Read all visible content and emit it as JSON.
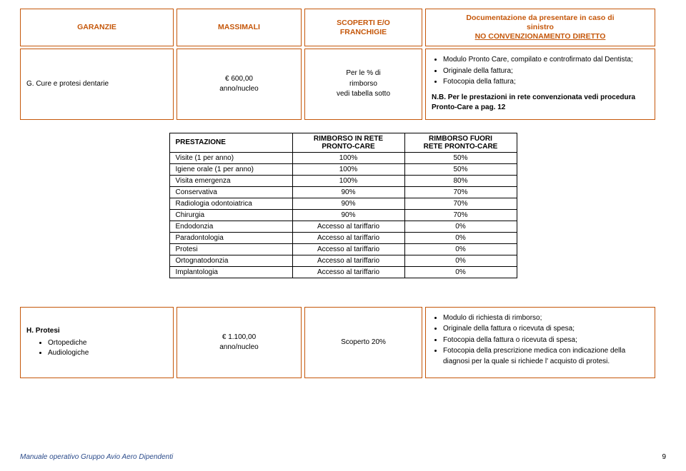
{
  "header": {
    "col1": "GARANZIE",
    "col2": "MASSIMALI",
    "col3_line1": "SCOPERTI E/O",
    "col3_line2": "FRANCHIGIE",
    "col4_line1": "Documentazione da presentare in caso di",
    "col4_line2": "sinistro",
    "col4_line3": "NO CONVENZIONAMENTO DIRETTO"
  },
  "rowG": {
    "c1": "G.   Cure e protesi dentarie",
    "c2_line1": "€   600,00",
    "c2_line2": "anno/nucleo",
    "c3_line1": "Per le % di",
    "c3_line2": "rimborso",
    "c3_line3": "vedi tabella sotto",
    "c4_bullets": [
      "Modulo Pronto  Care, compilato e controfirmato dal Dentista;",
      "Originale della fattura;",
      "Fotocopia della fattura;"
    ],
    "c4_note": "N.B. Per le prestazioni in rete convenzionata vedi procedura Pronto-Care a pag. 12"
  },
  "innerTable": {
    "headers": {
      "a": "PRESTAZIONE",
      "b1": "RIMBORSO IN RETE",
      "b2": "PRONTO-CARE",
      "c1": "RIMBORSO FUORI",
      "c2": "RETE PRONTO-CARE"
    },
    "rows": [
      {
        "a": "Visite (1 per anno)",
        "b": "100%",
        "c": "50%"
      },
      {
        "a": "Igiene orale (1 per anno)",
        "b": "100%",
        "c": "50%"
      },
      {
        "a": "Visita emergenza",
        "b": "100%",
        "c": "80%"
      },
      {
        "a": "Conservativa",
        "b": "90%",
        "c": "70%"
      },
      {
        "a": "Radiologia odontoiatrica",
        "b": "90%",
        "c": "70%"
      },
      {
        "a": "Chirurgia",
        "b": "90%",
        "c": "70%"
      },
      {
        "a": "Endodonzia",
        "b": "Accesso al tariffario",
        "c": "0%"
      },
      {
        "a": "Paradontologia",
        "b": "Accesso al tariffario",
        "c": "0%"
      },
      {
        "a": "Protesi",
        "b": "Accesso al tariffario",
        "c": "0%"
      },
      {
        "a": "Ortognatodonzia",
        "b": "Accesso al tariffario",
        "c": "0%"
      },
      {
        "a": "Implantologia",
        "b": "Accesso al tariffario",
        "c": "0%"
      }
    ]
  },
  "rowH": {
    "c1_lead": "H.   Protesi",
    "c1_items": [
      "Ortopediche",
      "Audiologiche"
    ],
    "c2_line1": "€   1.100,00",
    "c2_line2": "anno/nucleo",
    "c3": "Scoperto 20%",
    "c4_bullets": [
      "Modulo di richiesta di rimborso;",
      "Originale della fattura o ricevuta di spesa;",
      "Fotocopia della fattura o ricevuta di spesa;",
      "Fotocopia della prescrizione medica con indicazione della diagnosi per la quale si richiede l' acquisto di protesi."
    ]
  },
  "footer": {
    "text": "Manuale operativo Gruppo Avio Aero Dipendenti",
    "page": "9"
  }
}
